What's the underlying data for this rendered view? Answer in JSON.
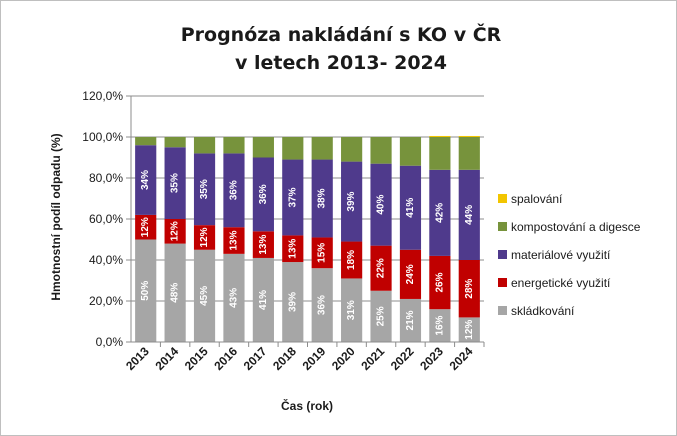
{
  "chart_data": {
    "type": "bar",
    "stacked": true,
    "title_line1": "Prognóza nakládání s KO v ČR",
    "title_line2": "v letech 2013- 2024",
    "xlabel": "Čas (rok)",
    "ylabel": "Hmotnostní podíl odpadu (%)",
    "ylim": [
      0,
      120
    ],
    "yticks": [
      "0,0%",
      "20,0%",
      "40,0%",
      "60,0%",
      "80,0%",
      "100,0%",
      "120,0%"
    ],
    "ytick_values": [
      0,
      20,
      40,
      60,
      80,
      100,
      120
    ],
    "grid": true,
    "legend_position": "right",
    "categories": [
      "2013",
      "2014",
      "2015",
      "2016",
      "2017",
      "2018",
      "2019",
      "2020",
      "2021",
      "2022",
      "2023",
      "2024"
    ],
    "series": [
      {
        "name": "skládkování",
        "color": "#a6a6a6",
        "values": [
          50,
          48,
          45,
          43,
          41,
          39,
          36,
          31,
          25,
          21,
          16,
          12
        ],
        "labels": [
          "50%",
          "48%",
          "45%",
          "43%",
          "41%",
          "39%",
          "36%",
          "31%",
          "25%",
          "21%",
          "16%",
          "12%"
        ]
      },
      {
        "name": "energetické využití",
        "color": "#c00000",
        "values": [
          12,
          12,
          12,
          13,
          13,
          13,
          15,
          18,
          22,
          24,
          26,
          28
        ],
        "labels": [
          "12%",
          "12%",
          "12%",
          "13%",
          "13%",
          "13%",
          "15%",
          "18%",
          "22%",
          "24%",
          "26%",
          "28%"
        ]
      },
      {
        "name": "materiálové využití",
        "color": "#4f3a8c",
        "values": [
          34,
          35,
          35,
          36,
          36,
          37,
          38,
          39,
          40,
          41,
          42,
          44
        ],
        "labels": [
          "34%",
          "35%",
          "35%",
          "36%",
          "36%",
          "37%",
          "38%",
          "39%",
          "40%",
          "41%",
          "42%",
          "44%"
        ]
      },
      {
        "name": "kompostování a digesce",
        "color": "#77933c",
        "values": [
          4,
          5,
          8,
          8,
          10,
          11,
          11,
          12,
          13,
          14,
          16,
          16
        ],
        "labels": []
      },
      {
        "name": "spalování",
        "color": "#f2c500",
        "values": [
          0,
          0,
          0,
          0,
          0,
          0,
          0,
          0,
          0,
          0,
          0.5,
          0.5
        ],
        "labels": []
      }
    ],
    "legend_order": [
      "spalování",
      "kompostování a digesce",
      "materiálové využití",
      "energetické využití",
      "skládkování"
    ]
  }
}
